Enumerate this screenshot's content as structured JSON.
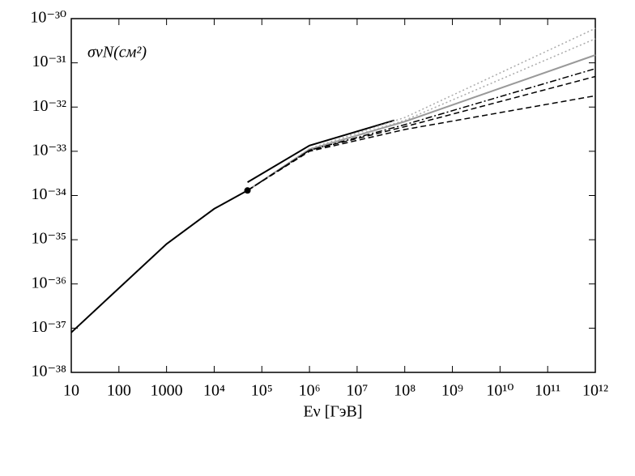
{
  "chart_data": {
    "type": "line",
    "annotation": "σνN(см²)",
    "xlabel": "Eν [ГэВ]",
    "xscale": "log",
    "yscale": "log",
    "xlim": [
      10,
      1000000000000.0
    ],
    "ylim": [
      1e-38,
      1e-30
    ],
    "xticks": [
      10,
      100,
      1000,
      {
        "value": 10000.0,
        "label": "10⁴"
      },
      {
        "value": 100000.0,
        "label": "10⁵"
      },
      {
        "value": 1000000.0,
        "label": "10⁶"
      },
      {
        "value": 10000000.0,
        "label": "10⁷"
      },
      {
        "value": 100000000.0,
        "label": "10⁸"
      },
      {
        "value": 1000000000.0,
        "label": "10⁹"
      },
      {
        "value": 10000000000.0,
        "label": "10¹⁰"
      },
      {
        "value": 100000000000.0,
        "label": "10¹¹"
      },
      {
        "value": 1000000000000.0,
        "label": "10¹²"
      }
    ],
    "yticks": [
      {
        "value": 1e-38,
        "label": "10⁻³⁸"
      },
      {
        "value": 1e-37,
        "label": "10⁻³⁷"
      },
      {
        "value": 1e-36,
        "label": "10⁻³⁶"
      },
      {
        "value": 1e-35,
        "label": "10⁻³⁵"
      },
      {
        "value": 1e-34,
        "label": "10⁻³⁴"
      },
      {
        "value": 1e-33,
        "label": "10⁻³³"
      },
      {
        "value": 1e-32,
        "label": "10⁻³²"
      },
      {
        "value": 1e-31,
        "label": "10⁻³¹"
      },
      {
        "value": 1e-30,
        "label": "10⁻³⁰"
      }
    ],
    "series": [
      {
        "color": "#000000",
        "style": "solid",
        "x": [
          10,
          100,
          1000,
          10000,
          50000
        ],
        "values": [
          8e-38,
          8e-37,
          8e-36,
          5e-35,
          1.3e-34
        ]
      },
      {
        "color": "#000000",
        "style": "solid",
        "x": [
          50000,
          1000000,
          60000000
        ],
        "values": [
          2e-34,
          1.35e-33,
          5e-33
        ]
      },
      {
        "color": "#999999",
        "style": "solid",
        "x": [
          50000,
          1000000,
          100000000,
          1000000000000.0
        ],
        "values": [
          1.3e-34,
          1.1e-33,
          4.7e-33,
          1.5e-31
        ]
      },
      {
        "color": "#aaaaaa",
        "style": "dotted",
        "x": [
          50000,
          1000000,
          100000000,
          1000000000000.0
        ],
        "values": [
          1.3e-34,
          1.15e-33,
          5.8e-33,
          6e-31
        ]
      },
      {
        "color": "#aaaaaa",
        "style": "dotted",
        "x": [
          50000,
          1000000,
          100000000,
          1000000000000.0
        ],
        "values": [
          1.3e-34,
          1.1e-33,
          5e-33,
          3.5e-31
        ]
      },
      {
        "color": "#000000",
        "style": "dashdot",
        "x": [
          50000,
          1000000,
          100000000,
          1000000000000.0
        ],
        "values": [
          1.3e-34,
          1.05e-33,
          4e-33,
          7.4e-32
        ]
      },
      {
        "color": "#000000",
        "style": "dashed",
        "x": [
          50000,
          1000000,
          100000000,
          1000000000000.0
        ],
        "values": [
          1.3e-34,
          1.05e-33,
          3.6e-33,
          4.9e-32
        ]
      },
      {
        "color": "#000000",
        "style": "dashed",
        "x": [
          50000,
          1000000,
          100000000,
          1000000000000.0
        ],
        "values": [
          1.3e-34,
          1e-33,
          3.1e-33,
          1.8e-32
        ]
      },
      {
        "color": "#000000",
        "style": "marker",
        "x": [
          50000
        ],
        "values": [
          1.3e-34
        ]
      }
    ]
  }
}
